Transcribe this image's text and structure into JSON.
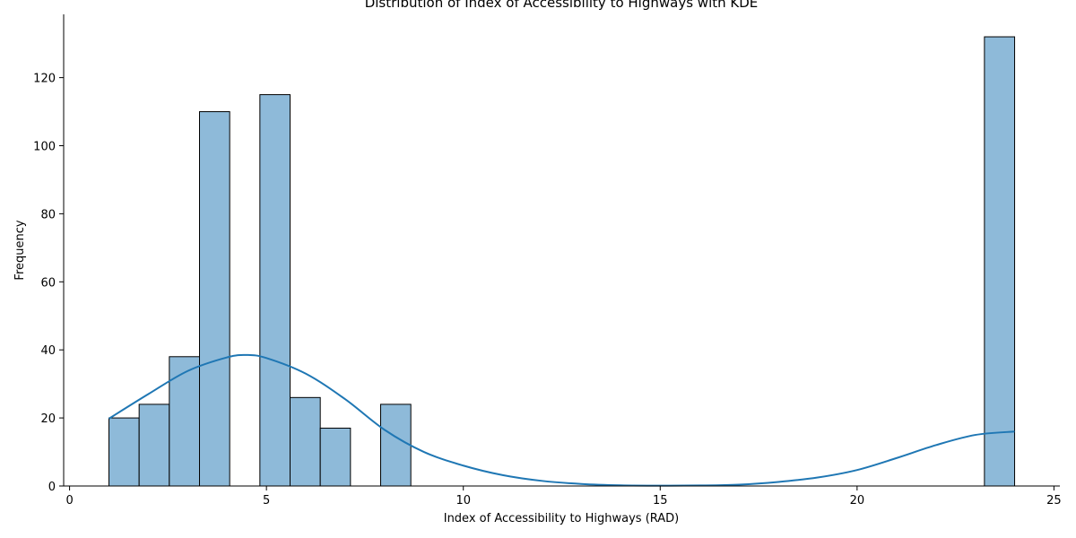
{
  "chart_data": {
    "type": "bar",
    "title": "Distribution of Index of Accessibility to Highways with KDE",
    "xlabel": "Index of Accessibility to Highways (RAD)",
    "ylabel": "Frequency",
    "xlim": [
      -0.15,
      25.15
    ],
    "ylim": [
      0,
      138.6
    ],
    "xticks": [
      0,
      5,
      10,
      15,
      20,
      25
    ],
    "yticks": [
      0,
      20,
      40,
      60,
      80,
      100,
      120
    ],
    "grid": false,
    "bin_start": 1,
    "bin_width": 0.7667,
    "bin_counts": [
      20,
      24,
      38,
      110,
      0,
      115,
      26,
      17,
      0,
      24,
      0,
      0,
      0,
      0,
      0,
      0,
      0,
      0,
      0,
      0,
      0,
      0,
      0,
      0,
      0,
      0,
      0,
      0,
      0,
      132
    ],
    "bar_color": "#8ebad9",
    "bar_edge_color": "#000000",
    "kde": {
      "name": "",
      "color": "#1f77b4",
      "x": [
        1,
        2,
        3,
        4,
        4.5,
        5,
        6,
        7,
        8,
        9,
        10,
        11,
        12,
        13,
        14,
        15,
        16,
        17,
        18,
        19,
        20,
        21,
        22,
        23,
        24
      ],
      "y": [
        19.8,
        27,
        33.8,
        37.8,
        38.5,
        37.6,
        33,
        25.5,
        16.5,
        10,
        6,
        3.2,
        1.5,
        0.6,
        0.2,
        0.1,
        0.15,
        0.4,
        1.2,
        2.5,
        4.7,
        8.2,
        12,
        15,
        16
      ]
    }
  }
}
